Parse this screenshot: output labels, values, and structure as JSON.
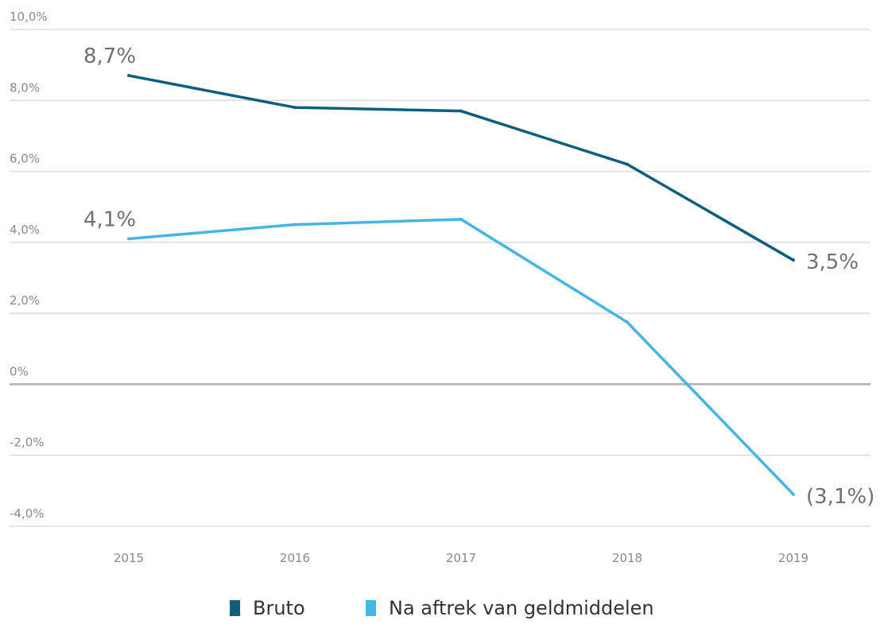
{
  "chart_data": {
    "type": "line",
    "categories": [
      "2015",
      "2016",
      "2017",
      "2018",
      "2019"
    ],
    "y_ticks": [
      "10,0%",
      "8,0%",
      "6,0%",
      "4,0%",
      "2,0%",
      "0%",
      "-2,0%",
      "-4,0%"
    ],
    "ylim": [
      -4,
      10
    ],
    "grid": true,
    "legend_position": "bottom-center",
    "series": [
      {
        "name": "Bruto",
        "color": "#0e5e7e",
        "values": [
          8.7,
          7.8,
          7.7,
          6.2,
          3.5
        ],
        "labels": [
          {
            "index": 0,
            "text": "8,7%"
          },
          {
            "index": 4,
            "text": "3,5%"
          }
        ]
      },
      {
        "name": "Na aftrek van geldmiddelen",
        "color": "#45b4e6",
        "values": [
          4.1,
          4.5,
          4.65,
          1.75,
          -3.1
        ],
        "labels": [
          {
            "index": 0,
            "text": "4,1%"
          },
          {
            "index": 4,
            "text": "(3,1%)"
          }
        ]
      }
    ]
  }
}
